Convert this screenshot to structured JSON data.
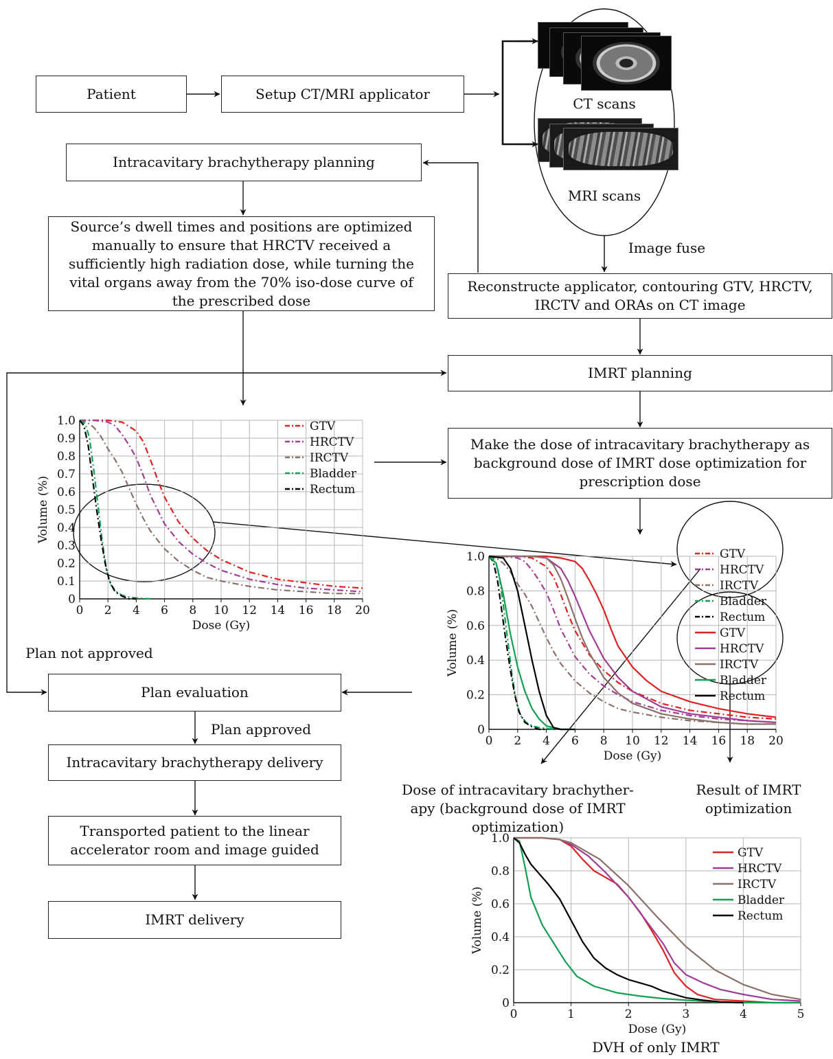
{
  "boxes": {
    "patient": "Patient",
    "setup": "Setup CT/MRI applicator",
    "ibt_planning": "Intracavitary brachytherapy planning",
    "dwell": "Source’s dwell times and positions are optimized manually to ensure that HRCTV received a sufficiently high radiation dose, while turning the vital organs away from the 70% iso-dose curve of the prescribed dose",
    "reconstruct": "Reconstructe applicator, contouring GTV, HRCTV, IRCTV and ORAs on CT image",
    "imrt_planning": "IMRT planning",
    "background": "Make the dose of intracavitary brachytherapy as background dose of IMRT dose optimization for prescription dose",
    "plan_eval": "Plan evaluation",
    "ibt_delivery": "Intracavitary brachytherapy delivery",
    "transport": "Transported patient to the linear accelerator room and image guided",
    "imrt_delivery": "IMRT delivery"
  },
  "labels": {
    "ct_scans": "CT scans",
    "mri_scans": "MRI scans",
    "image_fuse": "Image fuse",
    "not_approved": "Plan not approved",
    "approved": "Plan approved",
    "caption_bg": "Dose of intracavitary brachyther-apy (background dose of IMRT optimization)",
    "caption_bg_1": "Dose of intracavitary brachyther-",
    "caption_bg_2": "apy (background dose of IMRT",
    "caption_bg_3": "optimization)",
    "caption_res_1": "Result of IMRT",
    "caption_res_2": "optimization",
    "caption_dvh": "DVH of only IMRT"
  },
  "colors": {
    "GTV": "#e02020",
    "HRCTV": "#a03c96",
    "IRCTV": "#8a7068",
    "Bladder": "#10a050",
    "Rectum": "#000000"
  },
  "chart_data": [
    {
      "type": "line",
      "xlabel": "Dose (Gy)",
      "ylabel": "Volume (%)",
      "xlim": [
        0,
        20
      ],
      "ylim": [
        0,
        1.0
      ],
      "xticks": [
        0,
        2,
        4,
        6,
        8,
        10,
        12,
        14,
        16,
        18,
        20
      ],
      "yticks": [
        0,
        0.1,
        0.2,
        0.3,
        0.4,
        0.5,
        0.6,
        0.7,
        0.8,
        0.9,
        1.0
      ],
      "ytick_labels": [
        "0",
        "0.1",
        "0.2",
        "0.3",
        "0.4",
        "0.5",
        "0.6",
        "0.7",
        "0.8",
        "0.9",
        "1.0"
      ],
      "grid": true,
      "legend_position": "top-right",
      "series": [
        {
          "name": "GTV",
          "style": "dashdot",
          "x": [
            0,
            1,
            2,
            3,
            4,
            4.5,
            5,
            5.5,
            6,
            7,
            8,
            9,
            10,
            12,
            14,
            16,
            18,
            20
          ],
          "y": [
            1.0,
            1.0,
            1.0,
            0.99,
            0.94,
            0.88,
            0.78,
            0.67,
            0.57,
            0.43,
            0.34,
            0.27,
            0.22,
            0.15,
            0.11,
            0.09,
            0.07,
            0.06
          ]
        },
        {
          "name": "HRCTV",
          "style": "dashdot",
          "x": [
            0,
            1,
            2,
            2.5,
            3,
            3.5,
            4,
            4.5,
            5,
            6,
            7,
            8,
            9,
            10,
            12,
            14,
            16,
            18,
            20
          ],
          "y": [
            1.0,
            1.0,
            0.99,
            0.97,
            0.92,
            0.86,
            0.79,
            0.69,
            0.58,
            0.42,
            0.32,
            0.25,
            0.2,
            0.16,
            0.11,
            0.08,
            0.06,
            0.05,
            0.04
          ]
        },
        {
          "name": "IRCTV",
          "style": "dashdot",
          "x": [
            0,
            0.5,
            1,
            1.5,
            2,
            2.5,
            3,
            3.5,
            4,
            4.5,
            5,
            6,
            7,
            8,
            9,
            10,
            12,
            14,
            16,
            18,
            20
          ],
          "y": [
            1.0,
            0.99,
            0.96,
            0.91,
            0.84,
            0.78,
            0.71,
            0.62,
            0.53,
            0.45,
            0.38,
            0.28,
            0.21,
            0.16,
            0.12,
            0.1,
            0.07,
            0.05,
            0.04,
            0.03,
            0.03
          ]
        },
        {
          "name": "Bladder",
          "style": "dashdot",
          "x": [
            0,
            0.4,
            0.7,
            1.0,
            1.3,
            1.6,
            1.9,
            2.2,
            2.6,
            3.0,
            3.5,
            4.0,
            5.0
          ],
          "y": [
            1.0,
            0.98,
            0.9,
            0.72,
            0.52,
            0.32,
            0.16,
            0.08,
            0.04,
            0.02,
            0.01,
            0.005,
            0.0
          ]
        },
        {
          "name": "Rectum",
          "style": "dashdot",
          "x": [
            0,
            0.3,
            0.6,
            0.9,
            1.2,
            1.5,
            1.8,
            2.1,
            2.5,
            3.0,
            3.5,
            4.0
          ],
          "y": [
            1.0,
            0.97,
            0.86,
            0.68,
            0.5,
            0.34,
            0.2,
            0.1,
            0.04,
            0.015,
            0.0,
            0.0
          ]
        }
      ]
    },
    {
      "type": "line",
      "xlabel": "Dose (Gy)",
      "ylabel": "Volume (%)",
      "xlim": [
        0,
        20
      ],
      "ylim": [
        0,
        1.0
      ],
      "xticks": [
        0,
        2,
        4,
        6,
        8,
        10,
        12,
        14,
        16,
        18,
        20
      ],
      "yticks": [
        0,
        0.2,
        0.4,
        0.6,
        0.8,
        1.0
      ],
      "ytick_labels": [
        "0",
        "0.2",
        "0.4",
        "0.6",
        "0.8",
        "1.0"
      ],
      "grid": true,
      "legend_position": "top-right",
      "series": [
        {
          "name": "GTV",
          "style": "dashdot",
          "x": [
            0,
            1,
            2,
            3,
            4,
            4.5,
            5,
            5.5,
            6,
            7,
            8,
            9,
            10,
            12,
            14,
            16,
            18,
            20
          ],
          "y": [
            1.0,
            1.0,
            1.0,
            0.99,
            0.94,
            0.88,
            0.78,
            0.67,
            0.57,
            0.43,
            0.34,
            0.27,
            0.22,
            0.15,
            0.11,
            0.09,
            0.07,
            0.06
          ]
        },
        {
          "name": "HRCTV",
          "style": "dashdot",
          "x": [
            0,
            1,
            2,
            2.5,
            3,
            3.5,
            4,
            4.5,
            5,
            6,
            7,
            8,
            9,
            10,
            12,
            14,
            16,
            18,
            20
          ],
          "y": [
            1.0,
            1.0,
            0.99,
            0.97,
            0.92,
            0.86,
            0.79,
            0.69,
            0.58,
            0.42,
            0.32,
            0.25,
            0.2,
            0.16,
            0.11,
            0.08,
            0.06,
            0.05,
            0.04
          ]
        },
        {
          "name": "IRCTV",
          "style": "dashdot",
          "x": [
            0,
            0.5,
            1,
            1.5,
            2,
            2.5,
            3,
            3.5,
            4,
            4.5,
            5,
            6,
            7,
            8,
            9,
            10,
            12,
            14,
            16,
            18,
            20
          ],
          "y": [
            1.0,
            0.99,
            0.96,
            0.91,
            0.84,
            0.78,
            0.71,
            0.62,
            0.53,
            0.45,
            0.38,
            0.28,
            0.21,
            0.16,
            0.12,
            0.1,
            0.07,
            0.05,
            0.04,
            0.03,
            0.03
          ]
        },
        {
          "name": "Bladder",
          "style": "dashdot",
          "x": [
            0,
            0.4,
            0.7,
            1.0,
            1.3,
            1.6,
            1.9,
            2.2,
            2.6,
            3.0,
            3.5,
            4.0,
            5.0
          ],
          "y": [
            1.0,
            0.98,
            0.9,
            0.72,
            0.52,
            0.32,
            0.16,
            0.08,
            0.04,
            0.02,
            0.01,
            0.005,
            0.0
          ]
        },
        {
          "name": "Rectum",
          "style": "dashdot",
          "x": [
            0,
            0.3,
            0.6,
            0.9,
            1.2,
            1.5,
            1.8,
            2.1,
            2.5,
            3.0,
            3.5,
            4.0
          ],
          "y": [
            1.0,
            0.97,
            0.86,
            0.68,
            0.5,
            0.34,
            0.2,
            0.1,
            0.04,
            0.015,
            0.0,
            0.0
          ]
        },
        {
          "name": "GTV",
          "style": "solid",
          "x": [
            0,
            2,
            4,
            5,
            6,
            6.5,
            7,
            7.5,
            8,
            8.5,
            9,
            10,
            11,
            12,
            14,
            16,
            18,
            20
          ],
          "y": [
            1.0,
            1.0,
            1.0,
            0.99,
            0.97,
            0.93,
            0.86,
            0.78,
            0.69,
            0.58,
            0.48,
            0.36,
            0.28,
            0.22,
            0.16,
            0.12,
            0.09,
            0.07
          ]
        },
        {
          "name": "HRCTV",
          "style": "solid",
          "x": [
            0,
            2,
            3,
            4,
            5,
            5.5,
            6,
            6.5,
            7,
            8,
            9,
            10,
            12,
            14,
            16,
            18,
            20
          ],
          "y": [
            1.0,
            1.0,
            1.0,
            0.99,
            0.93,
            0.86,
            0.77,
            0.67,
            0.57,
            0.41,
            0.3,
            0.22,
            0.13,
            0.09,
            0.07,
            0.05,
            0.04
          ]
        },
        {
          "name": "IRCTV",
          "style": "solid",
          "x": [
            0,
            2,
            3,
            4,
            4.5,
            5,
            5.5,
            6,
            6.5,
            7,
            8,
            9,
            10,
            12,
            14,
            16,
            18,
            20
          ],
          "y": [
            1.0,
            1.0,
            1.0,
            0.99,
            0.95,
            0.87,
            0.76,
            0.64,
            0.53,
            0.44,
            0.3,
            0.21,
            0.15,
            0.09,
            0.06,
            0.04,
            0.03,
            0.03
          ]
        },
        {
          "name": "Bladder",
          "style": "solid",
          "x": [
            0,
            0.5,
            1,
            1.5,
            2,
            2.5,
            3,
            3.5,
            4,
            4.5,
            5,
            6
          ],
          "y": [
            1.0,
            0.96,
            0.78,
            0.55,
            0.36,
            0.22,
            0.12,
            0.06,
            0.02,
            0.01,
            0.0,
            0.0
          ]
        },
        {
          "name": "Rectum",
          "style": "solid",
          "x": [
            0,
            1,
            1.5,
            2,
            2.5,
            3,
            3.5,
            4,
            4.5,
            5,
            6
          ],
          "y": [
            1.0,
            0.99,
            0.93,
            0.8,
            0.6,
            0.4,
            0.22,
            0.08,
            0.01,
            0.0,
            0.0
          ]
        }
      ]
    },
    {
      "type": "line",
      "xlabel": "Dose (Gy)",
      "ylabel": "Volume (%)",
      "xlim": [
        0,
        5
      ],
      "ylim": [
        0,
        1.0
      ],
      "xticks": [
        0,
        1,
        2,
        3,
        4,
        5
      ],
      "yticks": [
        0,
        0.2,
        0.4,
        0.6,
        0.8,
        1.0
      ],
      "ytick_labels": [
        "0",
        "0.2",
        "0.4",
        "0.6",
        "0.8",
        "1.0"
      ],
      "grid": true,
      "legend_position": "top-right",
      "series": [
        {
          "name": "GTV",
          "style": "solid",
          "x": [
            0,
            0.5,
            0.8,
            1.0,
            1.2,
            1.4,
            1.6,
            1.8,
            2.0,
            2.2,
            2.4,
            2.6,
            2.8,
            3.0,
            3.2,
            3.5,
            4.0,
            4.5,
            5.0
          ],
          "y": [
            1.0,
            1.0,
            0.99,
            0.95,
            0.87,
            0.8,
            0.76,
            0.72,
            0.64,
            0.55,
            0.44,
            0.32,
            0.18,
            0.1,
            0.05,
            0.02,
            0.01,
            0.0,
            0.0
          ]
        },
        {
          "name": "HRCTV",
          "style": "solid",
          "x": [
            0,
            0.5,
            0.8,
            1.0,
            1.3,
            1.6,
            2.0,
            2.3,
            2.6,
            2.8,
            3.0,
            3.3,
            3.6,
            4.0,
            4.5,
            5.0
          ],
          "y": [
            1.0,
            1.0,
            0.99,
            0.96,
            0.89,
            0.79,
            0.64,
            0.5,
            0.36,
            0.24,
            0.17,
            0.12,
            0.08,
            0.05,
            0.02,
            0.01
          ]
        },
        {
          "name": "IRCTV",
          "style": "solid",
          "x": [
            0,
            0.5,
            0.8,
            1.0,
            1.5,
            2.0,
            2.5,
            3.0,
            3.5,
            4.0,
            4.5,
            5.0
          ],
          "y": [
            1.0,
            1.0,
            0.99,
            0.97,
            0.87,
            0.71,
            0.52,
            0.34,
            0.2,
            0.11,
            0.05,
            0.02
          ]
        },
        {
          "name": "Bladder",
          "style": "solid",
          "x": [
            0,
            0.1,
            0.2,
            0.3,
            0.5,
            0.7,
            0.9,
            1.1,
            1.4,
            1.8,
            2.2,
            2.6,
            3.0,
            3.5,
            4.0,
            5.0
          ],
          "y": [
            1.0,
            0.98,
            0.82,
            0.64,
            0.47,
            0.36,
            0.25,
            0.16,
            0.1,
            0.06,
            0.04,
            0.025,
            0.015,
            0.005,
            0.0,
            0.0
          ]
        },
        {
          "name": "Rectum",
          "style": "solid",
          "x": [
            0,
            0.1,
            0.2,
            0.3,
            0.4,
            0.6,
            0.8,
            1.0,
            1.2,
            1.4,
            1.6,
            1.8,
            2.0,
            2.2,
            2.4,
            2.6,
            2.8,
            3.0,
            3.3,
            3.6,
            4.0
          ],
          "y": [
            1.0,
            0.97,
            0.9,
            0.84,
            0.8,
            0.72,
            0.63,
            0.5,
            0.37,
            0.27,
            0.21,
            0.17,
            0.14,
            0.12,
            0.1,
            0.07,
            0.05,
            0.03,
            0.015,
            0.005,
            0.0
          ]
        }
      ]
    }
  ]
}
